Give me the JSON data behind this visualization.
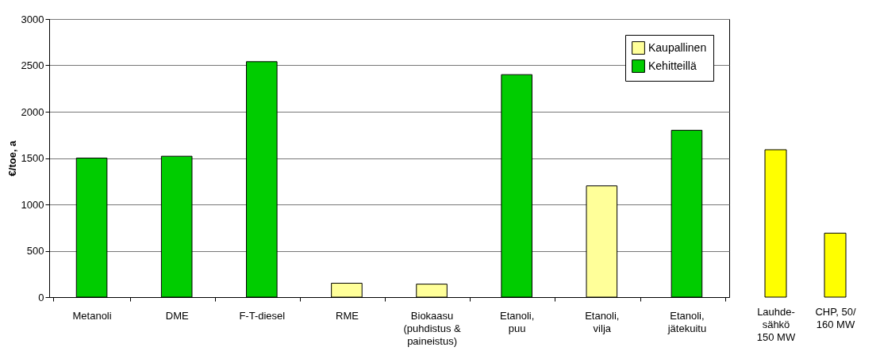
{
  "chart_data": [
    {
      "type": "bar",
      "ylabel": "€/toe, a",
      "categories": [
        "Metanoli",
        "DME",
        "F-T-diesel",
        "RME",
        "Biokaasu\n(puhdistus &\npaineistus)",
        "Etanoli,\npuu",
        "Etanoli,\nvilja",
        "Etanoli,\njätekuitu"
      ],
      "series": [
        {
          "name": "Kaupallinen",
          "color": "#ffff99",
          "values": [
            null,
            null,
            null,
            150,
            140,
            null,
            1200,
            null
          ]
        },
        {
          "name": "Kehitteillä",
          "color": "#00cc00",
          "values": [
            1500,
            1520,
            2540,
            null,
            null,
            2400,
            null,
            1800
          ]
        }
      ],
      "ylim": [
        0,
        3000
      ],
      "yticks": [
        0,
        500,
        1000,
        1500,
        2000,
        2500,
        3000
      ],
      "grid": "y",
      "legend": "top right"
    },
    {
      "type": "bar",
      "ylim": [
        0,
        3000
      ],
      "tick_labels": "x",
      "categories": [
        "Lauhde-\nsähkö\n150 MW",
        "CHP, 50/\n160 MW"
      ],
      "series": [
        {
          "color": "#ffff00",
          "values": [
            1590,
            690
          ]
        }
      ]
    }
  ]
}
